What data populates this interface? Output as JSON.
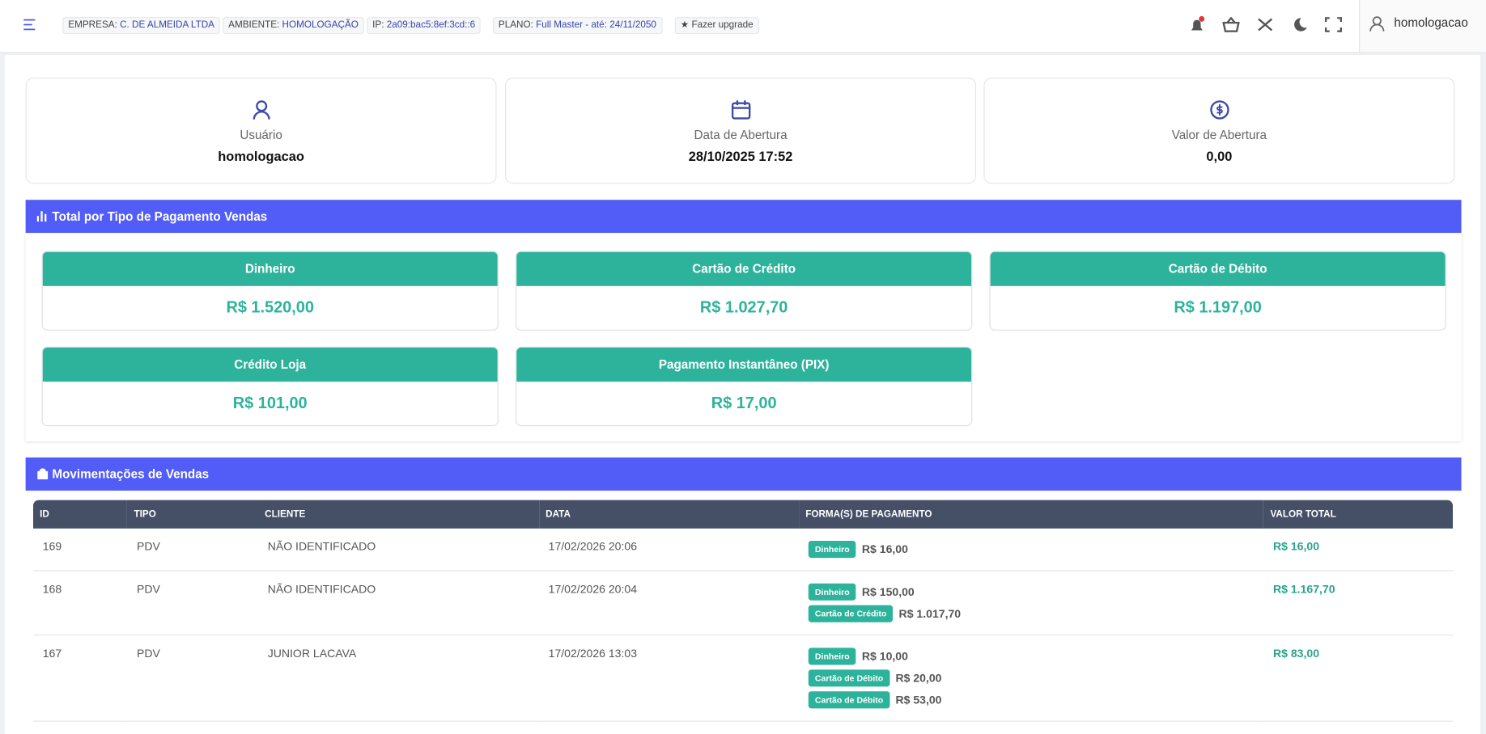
{
  "topbar": {
    "badges": [
      {
        "label": "EMPRESA:",
        "value": "C. DE ALMEIDA LTDA"
      },
      {
        "label": "AMBIENTE:",
        "value": "HOMOLOGAÇÃO"
      },
      {
        "label": "IP:",
        "value": "2a09:bac5:8ef:3cd::6"
      },
      {
        "label": "PLANO:",
        "value": "Full Master - até: 24/11/2050"
      }
    ],
    "upgrade": "Fazer upgrade",
    "user": "homologacao"
  },
  "info_cards": [
    {
      "label": "Usuário",
      "value": "homologacao"
    },
    {
      "label": "Data de Abertura",
      "value": "28/10/2025 17:52"
    },
    {
      "label": "Valor de Abertura",
      "value": "0,00"
    }
  ],
  "payments": {
    "title": "Total por Tipo de Pagamento Vendas",
    "items": [
      {
        "name": "Dinheiro",
        "value": "R$ 1.520,00"
      },
      {
        "name": "Cartão de Crédito",
        "value": "R$ 1.027,70"
      },
      {
        "name": "Cartão de Débito",
        "value": "R$ 1.197,00"
      },
      {
        "name": "Crédito Loja",
        "value": "R$ 101,00"
      },
      {
        "name": "Pagamento Instantâneo (PIX)",
        "value": "R$ 17,00"
      }
    ]
  },
  "sales": {
    "title": "Movimentações de Vendas",
    "columns": [
      "ID",
      "TIPO",
      "CLIENTE",
      "DATA",
      "FORMA(S) DE PAGAMENTO",
      "VALOR TOTAL"
    ],
    "rows": [
      {
        "id": "169",
        "tipo": "PDV",
        "cliente": "NÃO IDENTIFICADO",
        "data": "17/02/2026 20:06",
        "payments": [
          {
            "method": "Dinheiro",
            "amount": "R$ 16,00"
          }
        ],
        "total": "R$ 16,00"
      },
      {
        "id": "168",
        "tipo": "PDV",
        "cliente": "NÃO IDENTIFICADO",
        "data": "17/02/2026 20:04",
        "payments": [
          {
            "method": "Dinheiro",
            "amount": "R$ 150,00"
          },
          {
            "method": "Cartão de Crédito",
            "amount": "R$ 1.017,70"
          }
        ],
        "total": "R$ 1.167,70"
      },
      {
        "id": "167",
        "tipo": "PDV",
        "cliente": "JUNIOR LACAVA",
        "data": "17/02/2026 13:03",
        "payments": [
          {
            "method": "Dinheiro",
            "amount": "R$ 10,00"
          },
          {
            "method": "Cartão de Débito",
            "amount": "R$ 20,00"
          },
          {
            "method": "Cartão de Débito",
            "amount": "R$ 53,00"
          }
        ],
        "total": "R$ 83,00"
      }
    ]
  }
}
